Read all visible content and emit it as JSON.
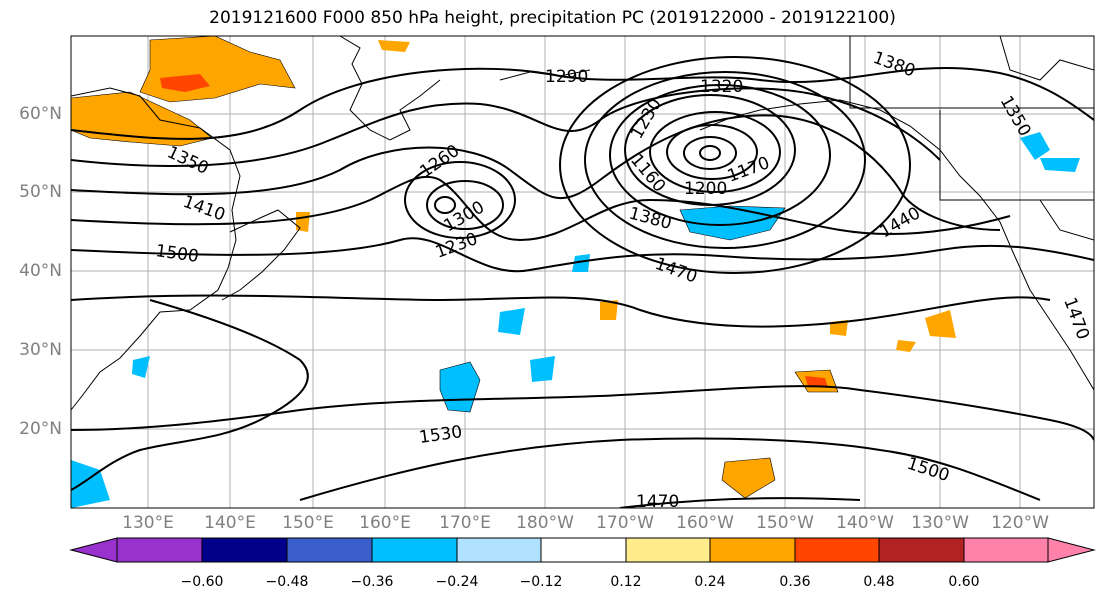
{
  "title": "2019121600 F000 850 hPa height, precipitation PC (2019122000 - 2019122100)",
  "map": {
    "lat_labels": [
      "60°N",
      "50°N",
      "40°N",
      "30°N",
      "20°N"
    ],
    "lon_labels": [
      "130°E",
      "140°E",
      "150°E",
      "160°E",
      "170°E",
      "180°W",
      "170°W",
      "160°W",
      "150°W",
      "140°W",
      "130°W",
      "120°W"
    ],
    "contour_labels": [
      "1290",
      "1320",
      "1380",
      "1350",
      "1260",
      "1230",
      "1160",
      "1200",
      "1170",
      "1380",
      "1410",
      "1500",
      "1440",
      "1470",
      "1230",
      "1300",
      "1530",
      "1500",
      "1470",
      "1470",
      "1350"
    ]
  },
  "colorbar": {
    "ticks": [
      "−0.60",
      "−0.48",
      "−0.36",
      "−0.24",
      "−0.12",
      "0.12",
      "0.24",
      "0.36",
      "0.48",
      "0.60"
    ],
    "colors": [
      "#9932cc",
      "#00008b",
      "#3a5fcd",
      "#00bfff",
      "#b0e2ff",
      "#ffffff",
      "#ffec8b",
      "#ffa500",
      "#ff4500",
      "#b22222",
      "#ff82ab"
    ]
  }
}
